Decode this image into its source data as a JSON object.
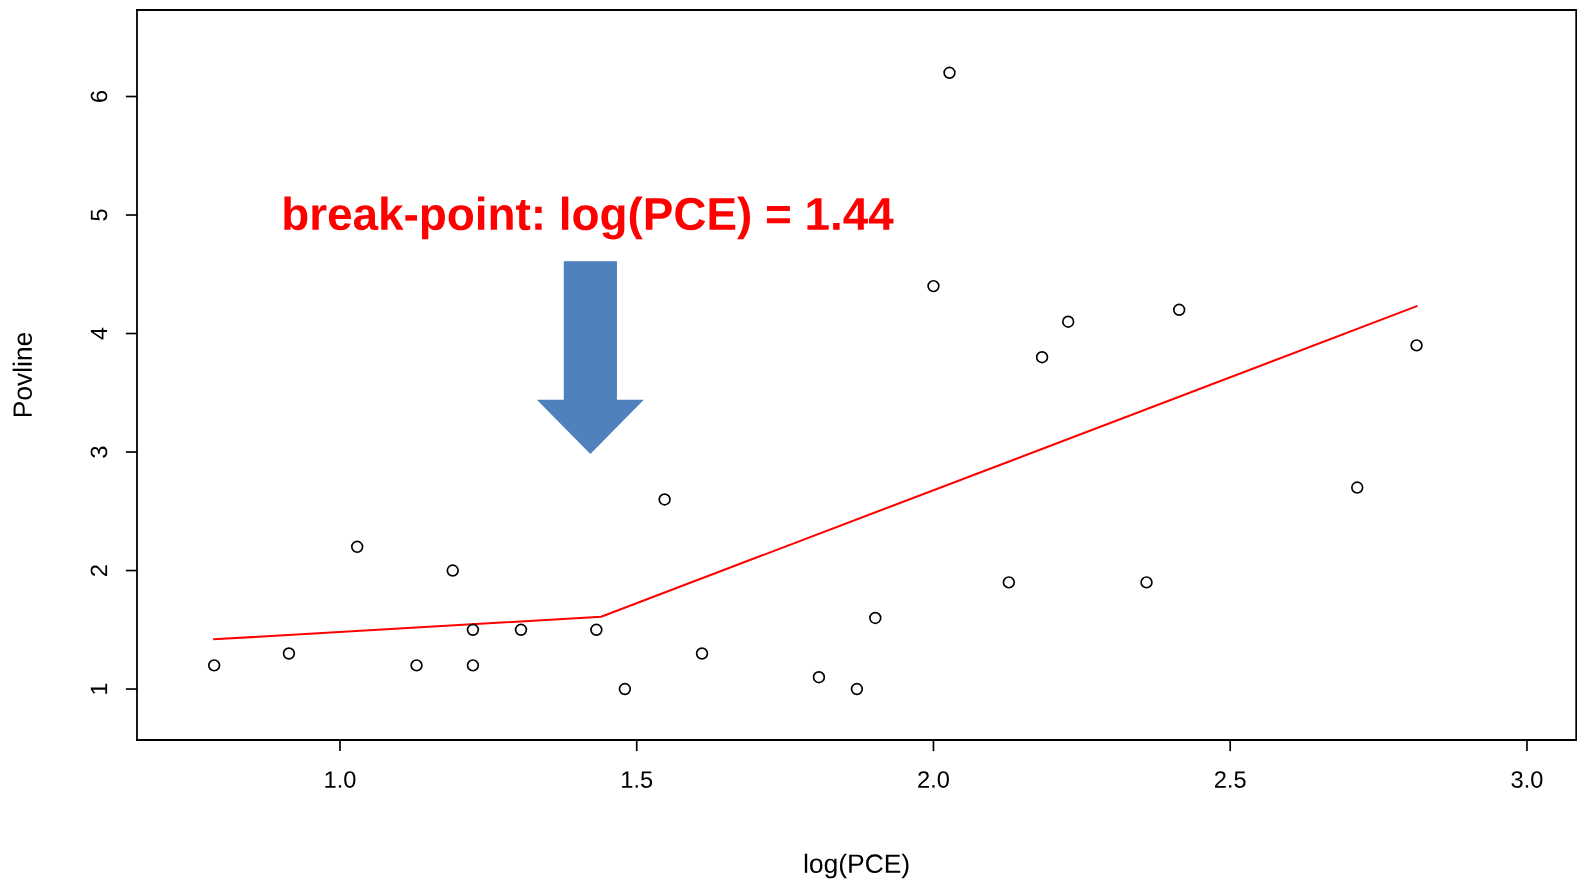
{
  "chart_data": {
    "type": "scatter",
    "xlabel": "log(PCE)",
    "ylabel": "Povline",
    "annotations": [
      "break-point: log(PCE) = 1.44"
    ],
    "xlim": [
      0.658,
      3.083
    ],
    "ylim": [
      0.57,
      6.73
    ],
    "xticks": [
      {
        "value": 1.0,
        "label": "1.0"
      },
      {
        "value": 1.5,
        "label": "1.5"
      },
      {
        "value": 2.0,
        "label": "2.0"
      },
      {
        "value": 2.5,
        "label": "2.5"
      },
      {
        "value": 3.0,
        "label": "3.0"
      }
    ],
    "yticks": [
      1,
      2,
      3,
      4,
      5,
      6
    ],
    "grid": false,
    "legend": false,
    "series": [
      {
        "color": "#000000",
        "marker": "circle",
        "x": [
          0.788,
          0.914,
          1.029,
          1.129,
          1.19,
          1.224,
          1.224,
          1.305,
          1.432,
          1.48,
          1.547,
          1.61,
          1.807,
          1.871,
          1.902,
          2.0,
          2.027,
          2.127,
          2.183,
          2.227,
          2.359,
          2.414,
          2.714,
          2.814
        ],
        "values": [
          1.2,
          1.3,
          2.2,
          1.2,
          2.0,
          1.5,
          1.2,
          1.5,
          1.5,
          1.0,
          2.6,
          1.3,
          1.1,
          1.0,
          1.6,
          4.4,
          6.2,
          1.9,
          3.8,
          4.1,
          1.9,
          4.2,
          2.7,
          3.9
        ]
      },
      {
        "type": "line",
        "color": "#ff0000",
        "marker": "none",
        "line_style": "solid",
        "x": [
          0.788,
          1.44,
          2.814
        ],
        "values": [
          1.42,
          1.61,
          4.23
        ]
      }
    ]
  }
}
